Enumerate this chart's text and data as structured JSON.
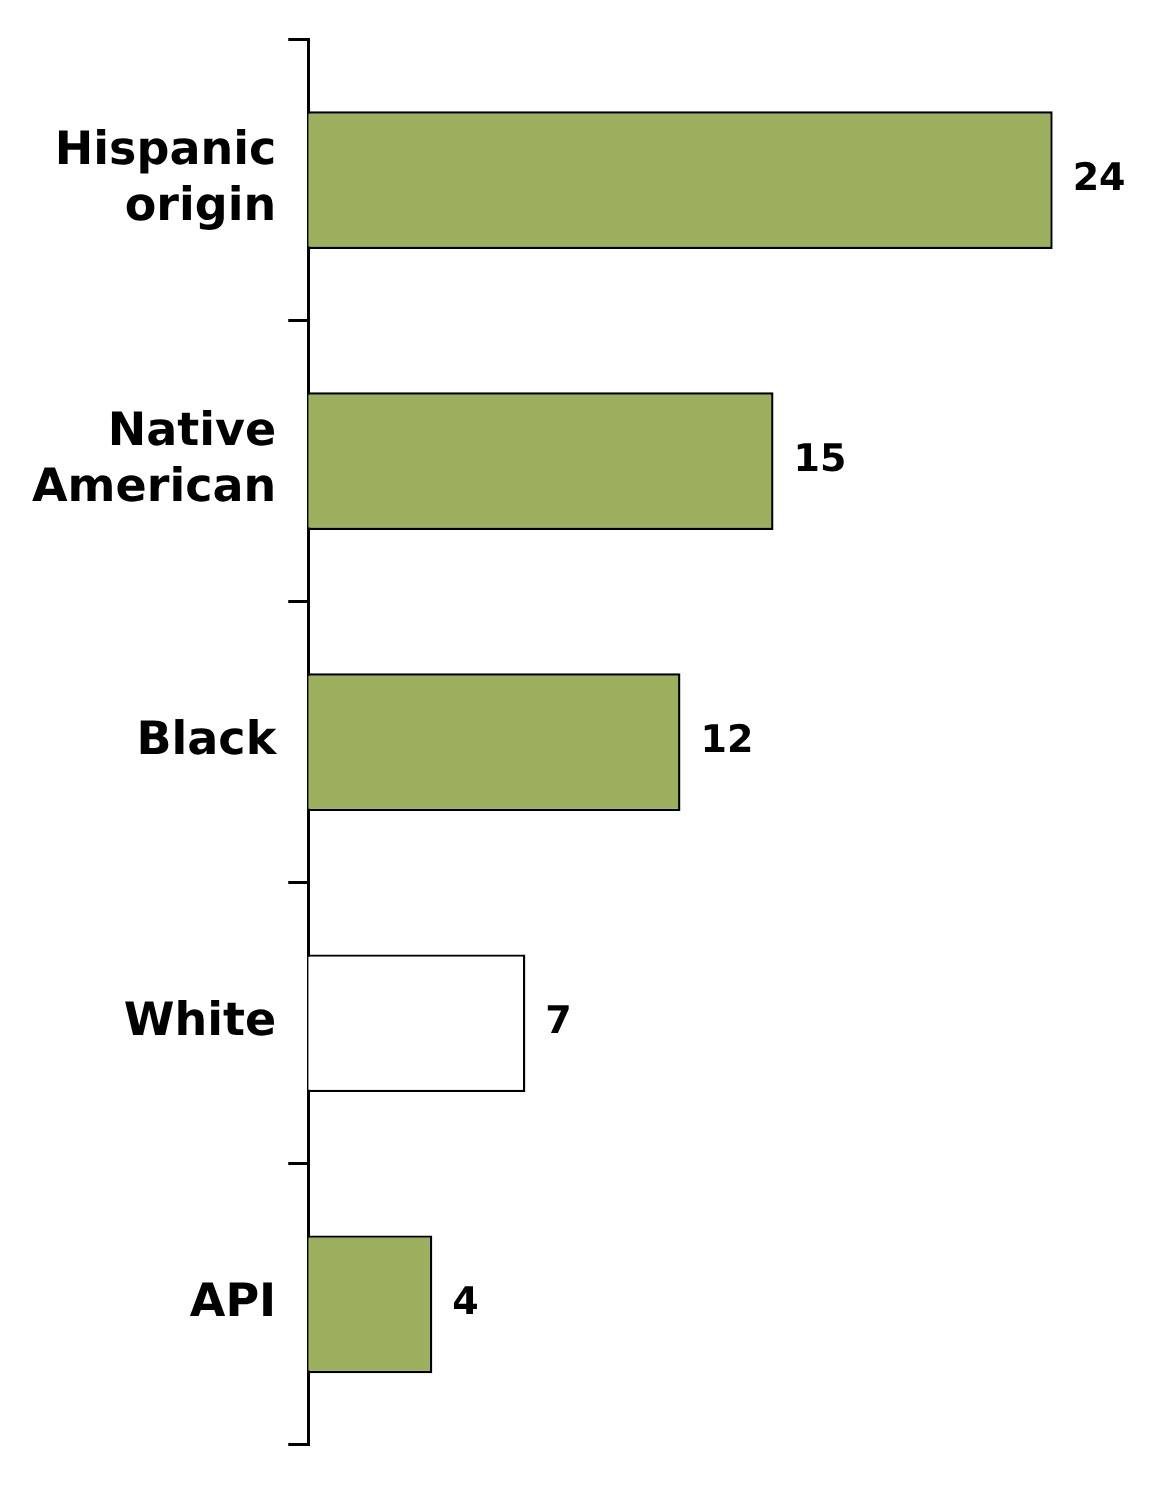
{
  "chart_data": {
    "type": "bar",
    "orientation": "horizontal",
    "categories": [
      "Hispanic origin",
      "Native American",
      "Black",
      "White",
      "API"
    ],
    "values": [
      24,
      15,
      12,
      7,
      4
    ],
    "colors": [
      "#9caf5f",
      "#9caf5f",
      "#9caf5f",
      "#ffffff",
      "#9caf5f"
    ],
    "data_labels": true,
    "grid": false,
    "legend": false
  }
}
